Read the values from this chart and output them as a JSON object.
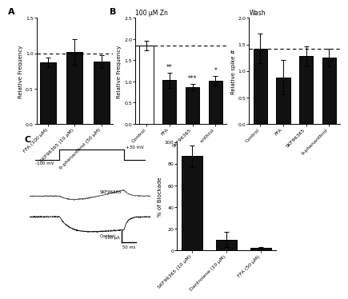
{
  "panel_A": {
    "label": "A",
    "ylabel": "Relative Frequency",
    "categories": [
      "FFA (100 μM)",
      "SKF96365 (10 μM)",
      "9-phenanthrol (50 μM)"
    ],
    "values": [
      0.87,
      1.02,
      0.88
    ],
    "errors": [
      0.07,
      0.18,
      0.09
    ],
    "dashed_line": 1.0,
    "ylim": [
      0,
      1.5
    ],
    "yticks": [
      0.0,
      0.5,
      1.0,
      1.5
    ],
    "bar_colors": [
      "#111111",
      "#111111",
      "#111111"
    ]
  },
  "panel_B1": {
    "label": "B",
    "title": "100 μM Zn",
    "ylabel": "Relative Frequency",
    "categories": [
      "Control",
      "FFA",
      "SKF96365",
      "9-phenanthrol"
    ],
    "values": [
      1.85,
      1.03,
      0.87,
      1.02
    ],
    "errors": [
      0.12,
      0.18,
      0.08,
      0.12
    ],
    "dashed_line": 1.85,
    "ylim": [
      0,
      2.5
    ],
    "yticks": [
      0.0,
      0.5,
      1.0,
      1.5,
      2.0,
      2.5
    ],
    "bar_colors": [
      "#ffffff",
      "#111111",
      "#111111",
      "#111111"
    ],
    "significance": [
      "",
      "**",
      "***",
      "*"
    ]
  },
  "panel_B2": {
    "title": "Wash",
    "ylabel": "Relative spike #",
    "categories": [
      "Control",
      "FFA",
      "SKF96365",
      "9-phenanthrol"
    ],
    "values": [
      1.42,
      0.88,
      1.28,
      1.25
    ],
    "errors": [
      0.28,
      0.32,
      0.18,
      0.17
    ],
    "dashed_line": 1.42,
    "ylim": [
      0,
      2.0
    ],
    "yticks": [
      0.0,
      0.5,
      1.0,
      1.5,
      2.0
    ],
    "bar_colors": [
      "#111111",
      "#111111",
      "#111111",
      "#111111"
    ]
  },
  "panel_C2": {
    "label": "C",
    "ylabel": "% of Blockade",
    "categories": [
      "SKF96365 (10 μM)",
      "Dantrolene (10 μM)",
      "FFA (50 μM)"
    ],
    "values": [
      87,
      10,
      2
    ],
    "errors": [
      10,
      7,
      1
    ],
    "ylim": [
      0,
      100
    ],
    "yticks": [
      0,
      20,
      40,
      60,
      80,
      100
    ],
    "bar_colors": [
      "#111111",
      "#111111",
      "#111111"
    ]
  },
  "trace": {
    "voltage_step_label": "+30 mV",
    "baseline_label": "-100 mV",
    "skf_label": "SKF96365",
    "ctrl_label": "Control",
    "scale_pa": "100 pA",
    "scale_ms": "50 ms"
  }
}
